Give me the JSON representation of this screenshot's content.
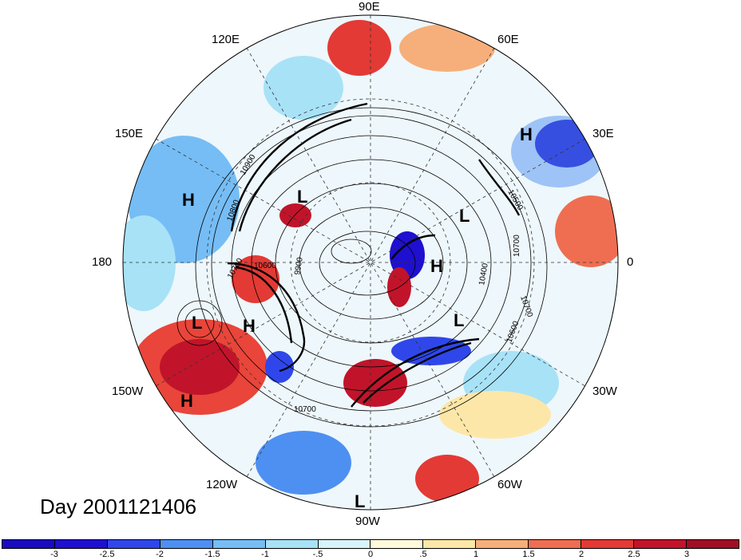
{
  "title": "Day 2001121406",
  "longitude_labels": [
    "90E",
    "60E",
    "30E",
    "0",
    "30W",
    "60W",
    "90W",
    "120W",
    "150W",
    "180",
    "150E",
    "120E"
  ],
  "pressure_centers": [
    {
      "label": "H"
    },
    {
      "label": "H"
    },
    {
      "label": "L"
    },
    {
      "label": "L"
    },
    {
      "label": "H"
    },
    {
      "label": "L"
    },
    {
      "label": "H"
    },
    {
      "label": "L"
    },
    {
      "label": "H"
    },
    {
      "label": "L"
    }
  ],
  "contour_labels": [
    "10900",
    "10800",
    "10700",
    "10600",
    "10400",
    "10700",
    "10500",
    "10600",
    "10700",
    "9900",
    "10700"
  ],
  "colorbar": {
    "colors": [
      "#1f0fd0",
      "#2f47ea",
      "#4e8ff2",
      "#76bdf5",
      "#a8e2f7",
      "#d8f4fb",
      "#fefbdc",
      "#fde7a8",
      "#f6af7a",
      "#ef6e52",
      "#e33a35",
      "#c1142a",
      "#a00d24"
    ],
    "tick_labels": [
      "-3",
      "-2.5",
      "-2",
      "-1.5",
      "-1",
      "-.5",
      "0",
      ".5",
      "1",
      "1.5",
      "2",
      "2.5",
      "3"
    ]
  }
}
